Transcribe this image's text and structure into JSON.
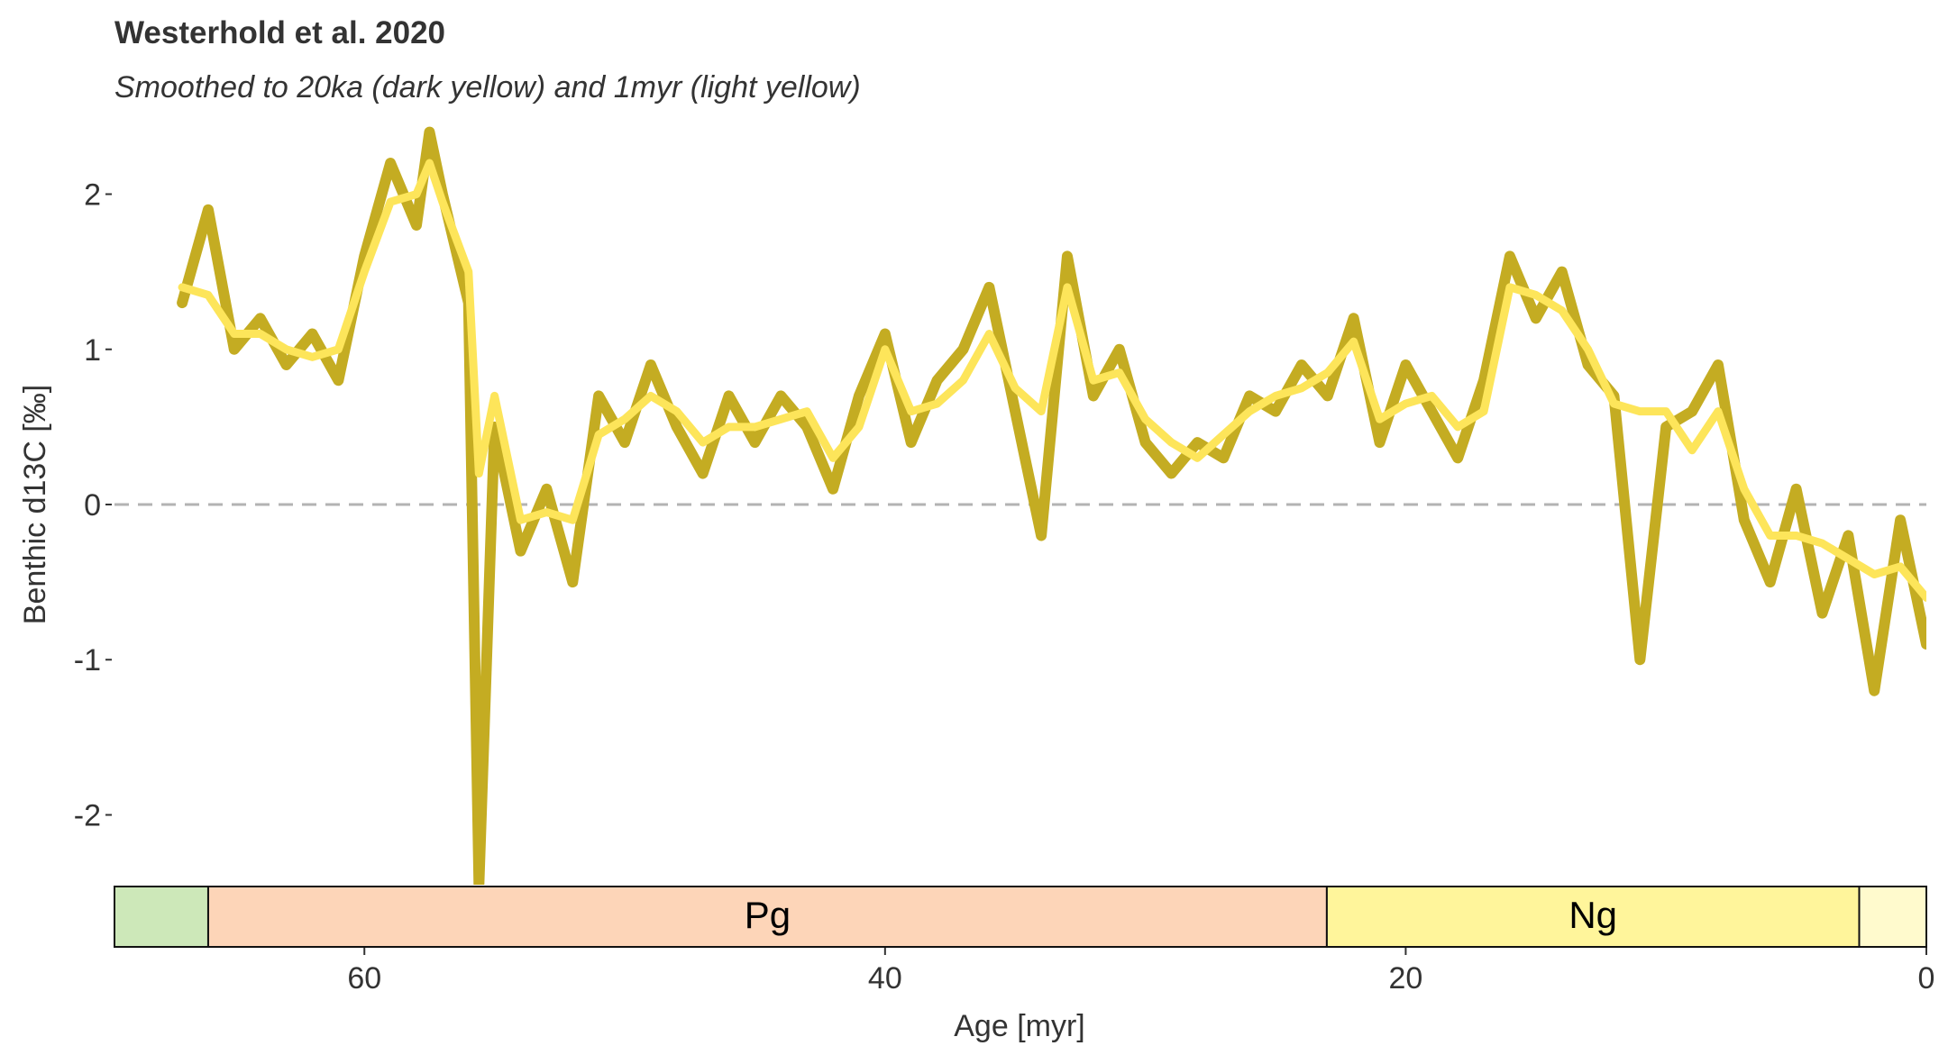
{
  "chart_data": {
    "type": "line",
    "title": "Westerhold et al. 2020",
    "subtitle": "Smoothed to 20ka (dark yellow) and 1myr (light yellow)",
    "x_label": "Age [myr]",
    "y_label": "Benthic d13C [‰]",
    "x": [
      67,
      66,
      65,
      64,
      63,
      62,
      61,
      60,
      59,
      58,
      57.5,
      57,
      56,
      55.6,
      55,
      54,
      53,
      52,
      51,
      50,
      49,
      48,
      47,
      46,
      45,
      44,
      43,
      42,
      41,
      40,
      39,
      38,
      37,
      36,
      35,
      34,
      33,
      32,
      31,
      30,
      29,
      28,
      27,
      26,
      25,
      24,
      23,
      22,
      21,
      20,
      19,
      18,
      17,
      16,
      15,
      14,
      13,
      12,
      11,
      10,
      9,
      8,
      7,
      6,
      5,
      4,
      3,
      2,
      1,
      0
    ],
    "series": [
      {
        "name": "20ka",
        "color": "#c4ac22",
        "values": [
          1.3,
          1.9,
          1.0,
          1.2,
          0.9,
          1.1,
          0.8,
          1.6,
          2.2,
          1.8,
          2.4,
          2.0,
          1.3,
          -2.45,
          0.5,
          -0.3,
          0.1,
          -0.5,
          0.7,
          0.4,
          0.9,
          0.5,
          0.2,
          0.7,
          0.4,
          0.7,
          0.5,
          0.1,
          0.7,
          1.1,
          0.4,
          0.8,
          1.0,
          1.4,
          0.6,
          -0.2,
          1.6,
          0.7,
          1.0,
          0.4,
          0.2,
          0.4,
          0.3,
          0.7,
          0.6,
          0.9,
          0.7,
          1.2,
          0.4,
          0.9,
          0.6,
          0.3,
          0.8,
          1.6,
          1.2,
          1.5,
          0.9,
          0.7,
          -1.0,
          0.5,
          0.6,
          0.9,
          -0.1,
          -0.5,
          0.1,
          -0.7,
          -0.2,
          -1.2,
          -0.1,
          -0.9
        ]
      },
      {
        "name": "1myr",
        "color": "#fde55a",
        "values": [
          1.4,
          1.35,
          1.1,
          1.1,
          1.0,
          0.95,
          1.0,
          1.5,
          1.95,
          2.0,
          2.2,
          1.95,
          1.5,
          0.2,
          0.7,
          -0.1,
          -0.05,
          -0.1,
          0.45,
          0.55,
          0.7,
          0.6,
          0.4,
          0.5,
          0.5,
          0.55,
          0.6,
          0.3,
          0.5,
          1.0,
          0.6,
          0.65,
          0.8,
          1.1,
          0.75,
          0.6,
          1.4,
          0.8,
          0.85,
          0.55,
          0.4,
          0.3,
          0.45,
          0.6,
          0.7,
          0.75,
          0.85,
          1.05,
          0.55,
          0.65,
          0.7,
          0.5,
          0.6,
          1.4,
          1.35,
          1.25,
          1.0,
          0.65,
          0.6,
          0.6,
          0.35,
          0.6,
          0.1,
          -0.2,
          -0.2,
          -0.25,
          -0.35,
          -0.45,
          -0.4,
          -0.6
        ]
      }
    ],
    "xlim": [
      69.6,
      0
    ],
    "xticks": [
      60,
      40,
      20,
      0
    ],
    "ylim": [
      -2.45,
      2.45
    ],
    "yticks": [
      -2,
      -1,
      0,
      1,
      2
    ],
    "hline": 0,
    "hline_color": "#b3b3b3",
    "timescale": {
      "labels": [
        null,
        "Pg",
        "Ng",
        null
      ],
      "boundaries": [
        69.6,
        66.0,
        23.03,
        2.58,
        0
      ],
      "colors": [
        "#cde8b9",
        "#fdd5b8",
        "#fff59b",
        "#fffacd"
      ]
    }
  }
}
